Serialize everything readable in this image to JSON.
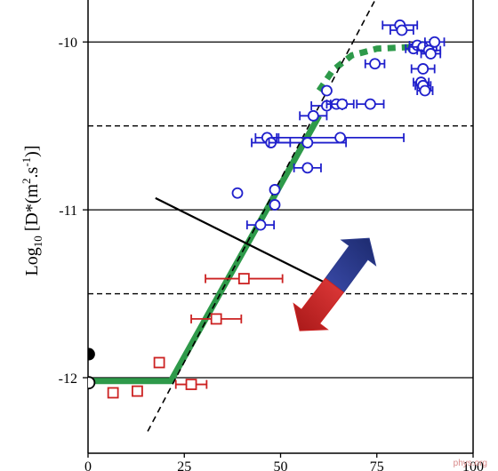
{
  "chart_data": {
    "type": "scatter",
    "ylabel": "Log10 [D*(m2.s-1)]",
    "ylabel_parts": {
      "log": "Log",
      "log_sub": "10",
      "open": " [D*(m",
      "m_sup": "2",
      "mid": ".s",
      "s_sup": "-1",
      "close": ")]"
    },
    "xlim": [
      0,
      100
    ],
    "ylim": [
      -12.45,
      -9.75
    ],
    "x_ticks": [
      {
        "value": 0,
        "label": "0"
      },
      {
        "value": 25,
        "label": "25"
      },
      {
        "value": 50,
        "label": "50"
      },
      {
        "value": 75,
        "label": "75"
      },
      {
        "value": 100,
        "label": "100"
      }
    ],
    "y_ticks": [
      {
        "value": -10,
        "label": "-10"
      },
      {
        "value": -11,
        "label": "-11"
      },
      {
        "value": -12,
        "label": "-12"
      }
    ],
    "grid": {
      "solid": [
        -10,
        -11,
        -12
      ],
      "dashed": [
        -10.5,
        -11.5
      ]
    },
    "series": [
      {
        "marker": "square",
        "color": "#cc2222",
        "points": [
          {
            "x": 6.5,
            "y": -12.09,
            "xerr": 0
          },
          {
            "x": 12.8,
            "y": -12.08,
            "xerr": 0
          },
          {
            "x": 18.5,
            "y": -11.91,
            "xerr": 0
          },
          {
            "x": 26.8,
            "y": -12.04,
            "xerr": 4.0
          },
          {
            "x": 33.3,
            "y": -11.65,
            "xerr": 6.5
          },
          {
            "x": 40.5,
            "y": -11.41,
            "xerr": 10.0
          }
        ]
      },
      {
        "marker": "circle",
        "color": "#2020cc",
        "points": [
          {
            "x": 38.8,
            "y": -10.9,
            "xerr": 0
          },
          {
            "x": 44.8,
            "y": -11.09,
            "xerr": 3.5
          },
          {
            "x": 48.5,
            "y": -10.97,
            "xerr": 0
          },
          {
            "x": 48.5,
            "y": -10.88,
            "xerr": 0
          },
          {
            "x": 46.5,
            "y": -10.57,
            "xerr": 3.0
          },
          {
            "x": 47.5,
            "y": -10.6,
            "xerr": 5.0
          },
          {
            "x": 57.0,
            "y": -10.6,
            "xerr": 10.0
          },
          {
            "x": 65.5,
            "y": -10.57,
            "xerr": 16.5
          },
          {
            "x": 57.0,
            "y": -10.75,
            "xerr": 3.5
          },
          {
            "x": 58.5,
            "y": -10.44,
            "xerr": 3.5
          },
          {
            "x": 62.0,
            "y": -10.38,
            "xerr": 4.0
          },
          {
            "x": 64.5,
            "y": -10.37,
            "xerr": 2.5
          },
          {
            "x": 66.0,
            "y": -10.37,
            "xerr": 3.0
          },
          {
            "x": 73.3,
            "y": -10.37,
            "xerr": 3.5
          },
          {
            "x": 62.0,
            "y": -10.29,
            "xerr": 0
          },
          {
            "x": 74.5,
            "y": -10.13,
            "xerr": 2.5
          },
          {
            "x": 81.0,
            "y": -9.9,
            "xerr": 4.5
          },
          {
            "x": 81.5,
            "y": -9.93,
            "xerr": 3.0
          },
          {
            "x": 84.5,
            "y": -10.04,
            "xerr": 2.0
          },
          {
            "x": 85.5,
            "y": -10.02,
            "xerr": 2.0
          },
          {
            "x": 87.0,
            "y": -10.03,
            "xerr": 3.5
          },
          {
            "x": 88.5,
            "y": -10.05,
            "xerr": 3.0
          },
          {
            "x": 89.0,
            "y": -10.07,
            "xerr": 2.5
          },
          {
            "x": 90.0,
            "y": -10.0,
            "xerr": 2.5
          },
          {
            "x": 87.0,
            "y": -10.16,
            "xerr": 3.0
          },
          {
            "x": 86.5,
            "y": -10.24,
            "xerr": 2.0
          },
          {
            "x": 87.0,
            "y": -10.26,
            "xerr": 2.0
          },
          {
            "x": 87.5,
            "y": -10.29,
            "xerr": 2.0
          }
        ]
      },
      {
        "marker": "filled-circle",
        "color": "#000000",
        "points": [
          {
            "x": 0.2,
            "y": -11.86,
            "xerr": 0
          }
        ]
      },
      {
        "marker": "open-circle-black",
        "color": "#000000",
        "points": [
          {
            "x": 0.2,
            "y": -12.03,
            "xerr": 0
          }
        ]
      }
    ],
    "fit_lines": [
      {
        "style": "solid",
        "color": "#2e9a4a",
        "points": [
          [
            0,
            -12.02
          ],
          [
            21.5,
            -12.02
          ],
          [
            60,
            -10.44
          ]
        ]
      },
      {
        "style": "dotted",
        "color": "#2e9a4a",
        "points": [
          [
            60,
            -10.29
          ],
          [
            63.5,
            -10.17
          ],
          [
            68.5,
            -10.08
          ],
          [
            75,
            -10.04
          ],
          [
            84,
            -10.03
          ],
          [
            89,
            -10.0
          ]
        ]
      },
      {
        "style": "dashed",
        "color": "#000000",
        "points": [
          [
            15.5,
            -12.32
          ],
          [
            75,
            -9.73
          ]
        ]
      },
      {
        "style": "solid",
        "color": "#000000",
        "points": [
          [
            17.5,
            -10.93
          ],
          [
            63,
            -11.45
          ]
        ]
      }
    ],
    "arrows": [
      {
        "color": "#2c3b8c",
        "direction": "up-right",
        "from": [
          64,
          -11.45
        ],
        "to": [
          73,
          -11.17
        ]
      },
      {
        "color": "#cc2222",
        "direction": "down-left",
        "from": [
          64,
          -11.45
        ],
        "to": [
          55,
          -11.72
        ]
      }
    ]
  },
  "watermark": "phys.org"
}
